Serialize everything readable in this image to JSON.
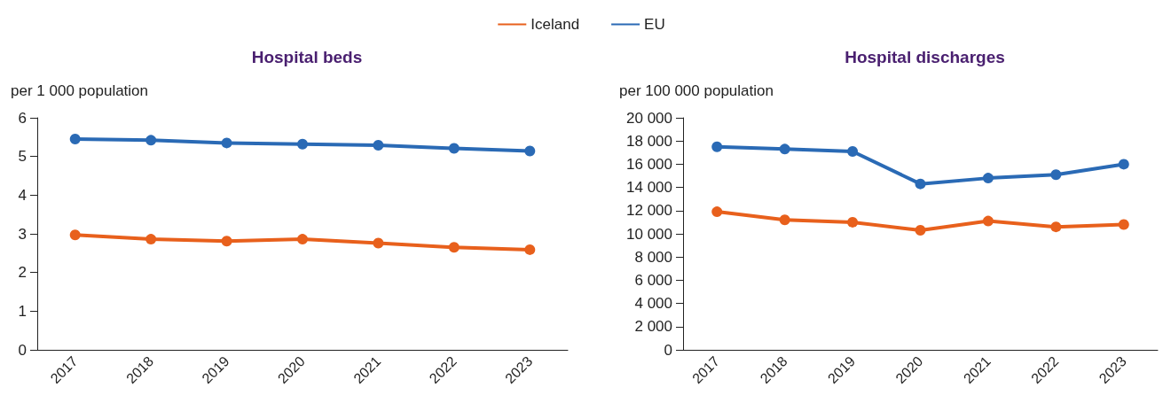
{
  "chart_data": [
    {
      "type": "line",
      "title": "Hospital beds",
      "ylabel": "per 1 000 population",
      "categories": [
        "2017",
        "2018",
        "2019",
        "2020",
        "2021",
        "2022",
        "2023"
      ],
      "series": [
        {
          "name": "Iceland",
          "color": "#e8601c",
          "values": [
            2.97,
            2.86,
            2.81,
            2.86,
            2.76,
            2.65,
            2.59
          ]
        },
        {
          "name": "EU",
          "color": "#2a6ab5",
          "values": [
            5.45,
            5.42,
            5.35,
            5.32,
            5.29,
            5.21,
            5.14
          ]
        }
      ],
      "ylim": [
        0,
        6
      ],
      "yticks": [
        0,
        1,
        2,
        3,
        4,
        5,
        6
      ],
      "grid": false,
      "legend": "top",
      "marker": "circle",
      "line_style": "solid"
    },
    {
      "type": "line",
      "title": "Hospital discharges",
      "ylabel": "per 100 000 population",
      "categories": [
        "2017",
        "2018",
        "2019",
        "2020",
        "2021",
        "2022",
        "2023"
      ],
      "series": [
        {
          "color": "#e8601c",
          "values": [
            11900,
            11200,
            11000,
            10300,
            11100,
            10600,
            10800
          ]
        },
        {
          "color": "#2a6ab5",
          "values": [
            17500,
            17300,
            17100,
            14300,
            14800,
            15100,
            16000
          ]
        }
      ],
      "ylim": [
        0,
        20000
      ],
      "yticks": [
        {
          "value": 0,
          "label": "0"
        },
        {
          "value": 2000,
          "label": "2 000"
        },
        {
          "value": 4000,
          "label": "4 000"
        },
        {
          "value": 6000,
          "label": "6 000"
        },
        {
          "value": 8000,
          "label": "8 000"
        },
        {
          "value": 10000,
          "label": "10 000"
        },
        {
          "value": 12000,
          "label": "12 000"
        },
        {
          "value": 14000,
          "label": "14 000"
        },
        {
          "value": 16000,
          "label": "16 000"
        },
        {
          "value": 18000,
          "label": "18 000"
        },
        {
          "value": 20000,
          "label": "20 000"
        }
      ],
      "grid": false,
      "marker": "circle",
      "line_style": "solid"
    }
  ]
}
